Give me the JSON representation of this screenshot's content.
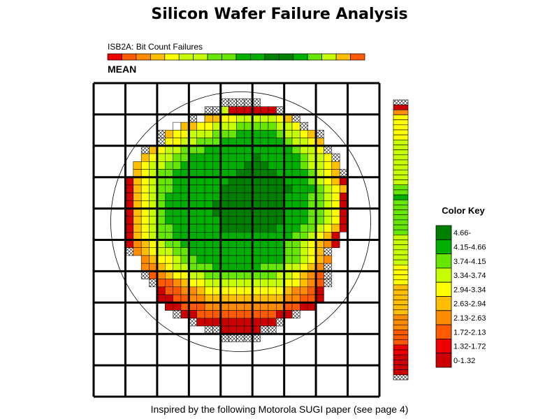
{
  "title": "Silicon Wafer Failure Analysis",
  "subtitle": "ISB2A: Bit Count Failures",
  "stat_label": "MEAN",
  "footnote": "Inspired by the following Motorola SUGI paper (see page 4)",
  "chart_data": {
    "type": "heatmap",
    "title": "Silicon Wafer Failure Analysis",
    "subtitle": "ISB2A: Bit Count Failures",
    "statistic": "MEAN",
    "grid": {
      "rows": 40,
      "cols": 36,
      "blocks": "4x4"
    },
    "legend": {
      "title": "Color Key",
      "placement": "right",
      "bins": [
        {
          "label": "4.66-",
          "min": 4.66,
          "max": null,
          "color": "#008000"
        },
        {
          "label": "4.15-4.66",
          "min": 4.15,
          "max": 4.66,
          "color": "#00b000"
        },
        {
          "label": "3.74-4.15",
          "min": 3.74,
          "max": 4.15,
          "color": "#66e600"
        },
        {
          "label": "3.34-3.74",
          "min": 3.34,
          "max": 3.74,
          "color": "#c8ff00"
        },
        {
          "label": "2.94-3.34",
          "min": 2.94,
          "max": 3.34,
          "color": "#ffff00"
        },
        {
          "label": "2.63-2.94",
          "min": 2.63,
          "max": 2.94,
          "color": "#ffbf00"
        },
        {
          "label": "2.13-2.63",
          "min": 2.13,
          "max": 2.63,
          "color": "#ff8c00"
        },
        {
          "label": "1.72-2.13",
          "min": 1.72,
          "max": 2.13,
          "color": "#ff5a00"
        },
        {
          "label": "1.32-1.72",
          "min": 1.32,
          "max": 1.72,
          "color": "#ee0000"
        },
        {
          "label": "0-1.32",
          "min": 0,
          "max": 1.32,
          "color": "#cc0000"
        }
      ]
    },
    "top_strip_bins": [
      8,
      7,
      6,
      5,
      4,
      3,
      3,
      2,
      2,
      1,
      1,
      0,
      0,
      1,
      2,
      3,
      5,
      7
    ],
    "rows": [
      "....................................",
      "....................................",
      "................xxxxx...............",
      "..............XxSJJJJJJx............",
      "............x9FFEEDDDDDEFx..........",
      "..........9FFEEDDDCCCCCDDEx.........",
      "........xFEEDDDCCCBBBBBCDDEFx.......",
      "........xEEDDCCCBBBBBBBBCDDEF.......",
      "......xFEDDCCCBBBBBBBBBBBCDDEx......",
      "......FEDDCCBBBBBBBBABBBBBCDDEx.....",
      ".....FEDDCCBBBBBBBBAAABBBBCDDEF.....",
      ".....FEDCCBBBBBBBBAAAAABBBBCDEFx....",
      "....JFEDCCBBBBBBBAAAAAAABBBCDEFJ....",
      "....JFEDCCBBBBBBAAAAAAAAABBBCDEF....",
      "....JFEDCBBBBBBBAAAAAAAABBBCCDEJ....",
      "....JFEDCBBBBBBAAAAAAAAABBBCCDEJ....",
      "....JFEDCBBBBBBAAAAAAAAABBBCCDEJ....",
      "....JFEDCBBBBBBBAAAAAAAABBBCCDEJ....",
      "....JFEDCCBBBBBBAAAAAAABBBCCDEFJ....",
      "....JFEDCCBBBBBBBBBBBBBBBCCDEFJ.....",
      "....JGFEDCCBBBBBBBBBBBBBCCDEFGJ.....",
      "....xGFEDDCCBBBBBBBBBBBBCCDEFx......",
      "......GFEEDCCBBBBBBBBBBBCCDEFG......",
      "......GGFEDDCCCBBBBBBCCCDDEFGx......",
      "......xHGFEEDDCCCCCCCCCDDEFGHx......",
      ".......xHHGFEEDDDDDDDDDDEEFGHx......",
      "........JHHGGFEEEEEEEEEEFGGHJ.......",
      "........JJHHGGFFFFFFFFFFGGHHJ.......",
      ".........JJHHHGGGGGGGGGGHHJJ........",
      "..........xJJHHHHHHHHHHJJx..........",
      "............xJJJJJJJJJJx............",
      "..............xxJJJJJxx.............",
      "................xxxxx...............",
      "....................................",
      "....................................",
      "....................................",
      "....................................",
      "....................................",
      "....................................",
      "...................................."
    ],
    "right_strip": [
      "x",
      "J",
      "G",
      "E",
      "E",
      "E",
      "E",
      "E",
      "D",
      "D",
      "D",
      "D",
      "D",
      "D",
      "D",
      "D",
      "D",
      "C",
      "C",
      "B",
      "C",
      "C",
      "C",
      "C",
      "C",
      "C",
      "C",
      "D",
      "D",
      "D",
      "D",
      "D",
      "D",
      "E",
      "E",
      "E",
      "E",
      "F",
      "F",
      "F",
      "F",
      "F",
      "F",
      "G",
      "G",
      "G",
      "H",
      "H",
      "H",
      "I",
      "I",
      "J",
      "J",
      "J",
      "J",
      "x"
    ]
  }
}
